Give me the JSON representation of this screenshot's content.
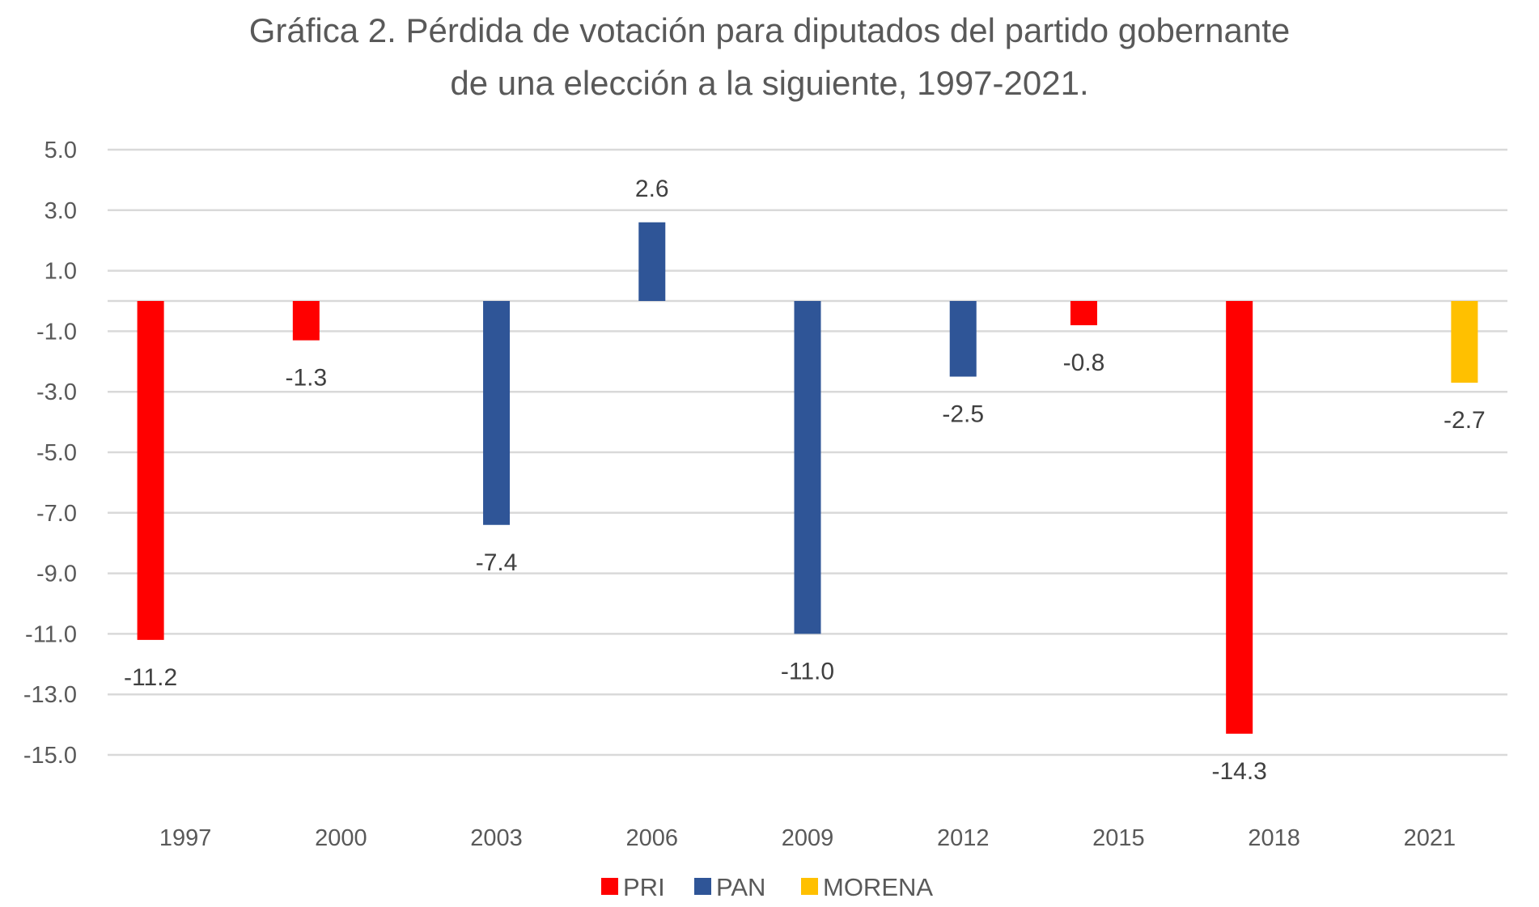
{
  "chart_data": {
    "type": "bar",
    "title": "Gráfica 2. Pérdida de votación para diputados del partido gobernante",
    "title_line2": "de una elección a la siguiente, 1997-2021.",
    "xlabel": "",
    "ylabel": "",
    "categories": [
      "1997",
      "2000",
      "2003",
      "2006",
      "2009",
      "2012",
      "2015",
      "2018",
      "2021"
    ],
    "series": [
      {
        "name": "PRI",
        "color": "#FF0000",
        "values": [
          -11.2,
          -1.3,
          null,
          null,
          null,
          null,
          -0.8,
          -14.3,
          null
        ]
      },
      {
        "name": "PAN",
        "color": "#2F5597",
        "values": [
          null,
          null,
          -7.4,
          2.6,
          -11.0,
          -2.5,
          null,
          null,
          null
        ]
      },
      {
        "name": "MORENA",
        "color": "#FFC000",
        "values": [
          null,
          null,
          null,
          null,
          null,
          null,
          null,
          null,
          -2.7
        ]
      }
    ],
    "data_labels": [
      {
        "category": "1997",
        "series": "PRI",
        "text": "-11.2"
      },
      {
        "category": "2000",
        "series": "PRI",
        "text": "-1.3"
      },
      {
        "category": "2003",
        "series": "PAN",
        "text": "-7.4"
      },
      {
        "category": "2006",
        "series": "PAN",
        "text": "2.6"
      },
      {
        "category": "2009",
        "series": "PAN",
        "text": "-11.0"
      },
      {
        "category": "2012",
        "series": "PAN",
        "text": "-2.5"
      },
      {
        "category": "2015",
        "series": "PRI",
        "text": "-0.8"
      },
      {
        "category": "2018",
        "series": "PRI",
        "text": "-14.3"
      },
      {
        "category": "2021",
        "series": "MORENA",
        "text": "-2.7"
      }
    ],
    "yticks": [
      5.0,
      3.0,
      1.0,
      -1.0,
      -3.0,
      -5.0,
      -7.0,
      -9.0,
      -11.0,
      -13.0,
      -15.0
    ],
    "ytick_labels": [
      "5.0",
      "3.0",
      "1.0",
      "-1.0",
      "-3.0",
      "-5.0",
      "-7.0",
      "-9.0",
      "-11.0",
      "-13.0",
      "-15.0"
    ],
    "ylim": [
      -15.0,
      5.0
    ],
    "grid": true,
    "legend": {
      "position": "bottom",
      "entries": [
        "PRI",
        "PAN",
        "MORENA"
      ]
    }
  }
}
